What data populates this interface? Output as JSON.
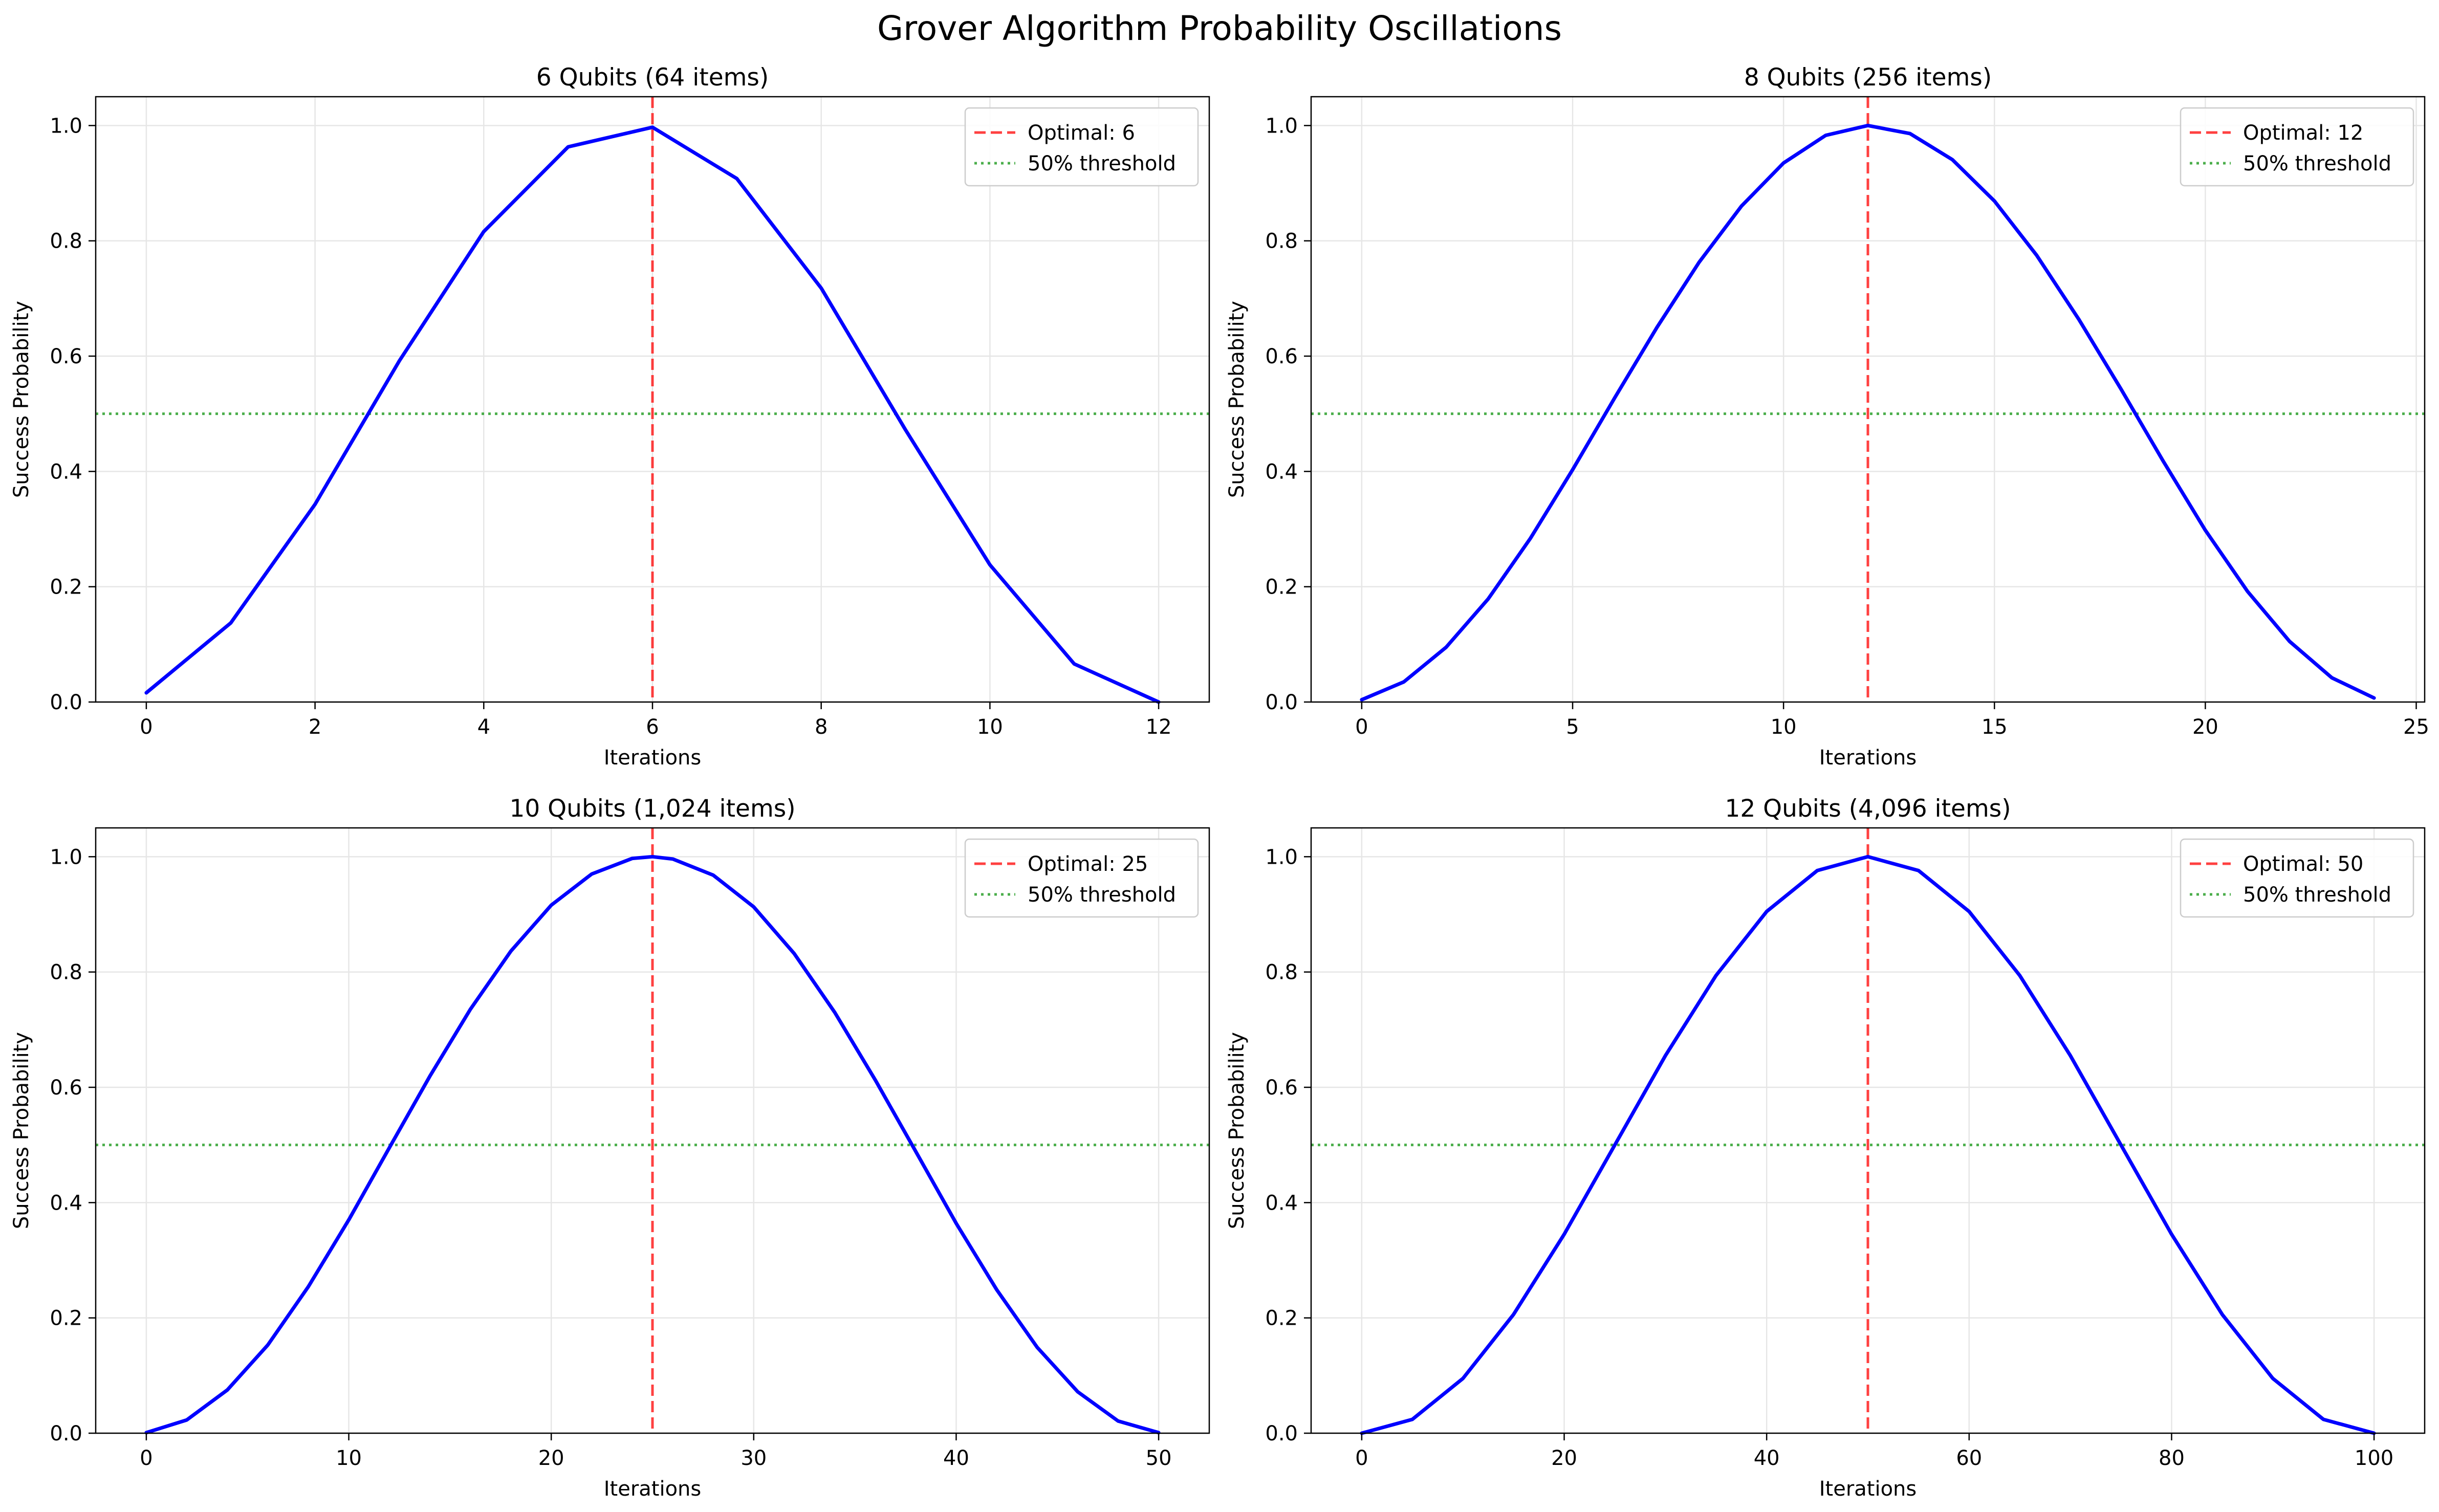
{
  "figure_title": "Grover Algorithm Probability Oscillations",
  "colors": {
    "curve": "#0000ff",
    "optimal_line": "#ff0000",
    "threshold_line": "#2ca02c",
    "grid": "#e6e6e6",
    "axes": "#000000"
  },
  "chart_data": [
    {
      "type": "line",
      "title": "6 Qubits (64 items)",
      "xlabel": "Iterations",
      "ylabel": "Success Probability",
      "xlim": [
        -0.6,
        12.6
      ],
      "ylim": [
        0,
        1.05
      ],
      "xticks": [
        0,
        2,
        4,
        6,
        8,
        10,
        12
      ],
      "xtick_labels": [
        "0",
        "2",
        "4",
        "6",
        "8",
        "10",
        "12"
      ],
      "yticks": [
        0.0,
        0.2,
        0.4,
        0.6,
        0.8,
        1.0
      ],
      "ytick_labels": [
        "0.0",
        "0.2",
        "0.4",
        "0.6",
        "0.8",
        "1.0"
      ],
      "grid": true,
      "legend_position": "top-right",
      "series": [
        {
          "x": [
            0,
            1,
            2,
            3,
            4,
            5,
            6,
            7,
            8,
            9,
            10,
            11,
            12
          ],
          "y": [
            0.016,
            0.137,
            0.343,
            0.592,
            0.816,
            0.963,
            0.997,
            0.908,
            0.718,
            0.472,
            0.238,
            0.066,
            0.0
          ]
        }
      ],
      "optimal": {
        "x": 6,
        "label": "Optimal: 6"
      },
      "threshold": {
        "y": 0.5,
        "label": "50% threshold"
      }
    },
    {
      "type": "line",
      "title": "8 Qubits (256 items)",
      "xlabel": "Iterations",
      "ylabel": "Success Probability",
      "xlim": [
        -1.2,
        25.2
      ],
      "ylim": [
        0,
        1.05
      ],
      "xticks": [
        0,
        5,
        10,
        15,
        20,
        25
      ],
      "xtick_labels": [
        "0",
        "5",
        "10",
        "15",
        "20",
        "25"
      ],
      "yticks": [
        0.0,
        0.2,
        0.4,
        0.6,
        0.8,
        1.0
      ],
      "ytick_labels": [
        "0.0",
        "0.2",
        "0.4",
        "0.6",
        "0.8",
        "1.0"
      ],
      "grid": true,
      "legend_position": "top-right",
      "series": [
        {
          "x": [
            0,
            1,
            2,
            3,
            4,
            5,
            6,
            7,
            8,
            9,
            10,
            11,
            12,
            13,
            14,
            15,
            16,
            17,
            18,
            19,
            20,
            21,
            22,
            23,
            24
          ],
          "y": [
            0.004,
            0.035,
            0.095,
            0.179,
            0.284,
            0.403,
            0.528,
            0.65,
            0.763,
            0.86,
            0.935,
            0.983,
            1.0,
            0.986,
            0.941,
            0.869,
            0.775,
            0.664,
            0.543,
            0.418,
            0.298,
            0.192,
            0.105,
            0.042,
            0.007
          ]
        }
      ],
      "optimal": {
        "x": 12,
        "label": "Optimal: 12"
      },
      "threshold": {
        "y": 0.5,
        "label": "50% threshold"
      }
    },
    {
      "type": "line",
      "title": "10 Qubits (1,024 items)",
      "xlabel": "Iterations",
      "ylabel": "Success Probability",
      "xlim": [
        -2.5,
        52.5
      ],
      "ylim": [
        0,
        1.05
      ],
      "xticks": [
        0,
        10,
        20,
        30,
        40,
        50
      ],
      "xtick_labels": [
        "0",
        "10",
        "20",
        "30",
        "40",
        "50"
      ],
      "yticks": [
        0.0,
        0.2,
        0.4,
        0.6,
        0.8,
        1.0
      ],
      "ytick_labels": [
        "0.0",
        "0.2",
        "0.4",
        "0.6",
        "0.8",
        "1.0"
      ],
      "grid": true,
      "legend_position": "top-right",
      "series": [
        {
          "x": [
            0,
            2,
            4,
            6,
            8,
            10,
            12,
            14,
            16,
            18,
            20,
            22,
            24,
            25,
            26,
            28,
            30,
            32,
            34,
            36,
            38,
            40,
            42,
            44,
            46,
            48,
            50
          ],
          "y": [
            0.001,
            0.023,
            0.075,
            0.153,
            0.254,
            0.37,
            0.495,
            0.619,
            0.735,
            0.836,
            0.916,
            0.97,
            0.997,
            1.0,
            0.996,
            0.968,
            0.913,
            0.832,
            0.73,
            0.613,
            0.489,
            0.364,
            0.249,
            0.149,
            0.072,
            0.021,
            0.001
          ]
        }
      ],
      "optimal": {
        "x": 25,
        "label": "Optimal: 25"
      },
      "threshold": {
        "y": 0.5,
        "label": "50% threshold"
      }
    },
    {
      "type": "line",
      "title": "12 Qubits (4,096 items)",
      "xlabel": "Iterations",
      "ylabel": "Success Probability",
      "xlim": [
        -5,
        105
      ],
      "ylim": [
        0,
        1.05
      ],
      "xticks": [
        0,
        20,
        40,
        60,
        80,
        100
      ],
      "xtick_labels": [
        "0",
        "20",
        "40",
        "60",
        "80",
        "100"
      ],
      "yticks": [
        0.0,
        0.2,
        0.4,
        0.6,
        0.8,
        1.0
      ],
      "ytick_labels": [
        "0.0",
        "0.2",
        "0.4",
        "0.6",
        "0.8",
        "1.0"
      ],
      "grid": true,
      "legend_position": "top-right",
      "series": [
        {
          "x": [
            0,
            5,
            10,
            15,
            20,
            25,
            30,
            35,
            40,
            45,
            50,
            55,
            60,
            65,
            70,
            75,
            80,
            85,
            90,
            95,
            100
          ],
          "y": [
            0.0,
            0.024,
            0.095,
            0.206,
            0.345,
            0.5,
            0.655,
            0.794,
            0.905,
            0.976,
            1.0,
            0.976,
            0.905,
            0.794,
            0.655,
            0.5,
            0.345,
            0.206,
            0.095,
            0.024,
            0.0
          ]
        }
      ],
      "optimal": {
        "x": 50,
        "label": "Optimal: 50"
      },
      "threshold": {
        "y": 0.5,
        "label": "50% threshold"
      }
    }
  ]
}
